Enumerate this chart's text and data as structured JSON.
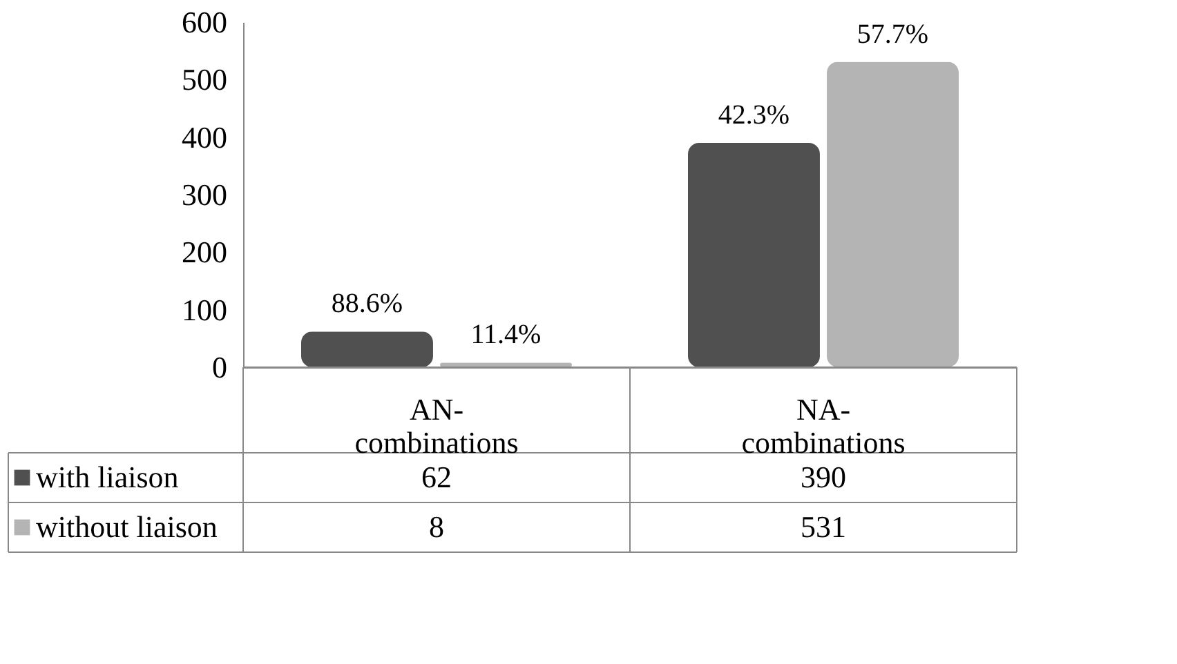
{
  "chart_data": {
    "type": "bar",
    "categories": [
      "AN-combinations",
      "NA-combinations"
    ],
    "series": [
      {
        "name": "with liaison",
        "color": "#505050",
        "values": [
          62,
          390
        ],
        "value_labels": [
          "62",
          "390"
        ]
      },
      {
        "name": "without liaison",
        "color": "#b4b4b4",
        "values": [
          8,
          531
        ],
        "value_labels": [
          "8",
          "531"
        ]
      }
    ],
    "annotations": [
      {
        "text": "88.6%",
        "x": "AN-combinations",
        "y": 62
      },
      {
        "text": "11.4%",
        "x": "AN-combinations",
        "y": 8
      },
      {
        "text": "42.3%",
        "x": "NA-combinations",
        "y": 390
      },
      {
        "text": "57.7%",
        "x": "NA-combinations",
        "y": 531
      }
    ],
    "ylim": [
      0,
      600
    ],
    "yticks": [
      0,
      100,
      200,
      300,
      400,
      500,
      600
    ],
    "grid": false,
    "legend": "bottom"
  }
}
